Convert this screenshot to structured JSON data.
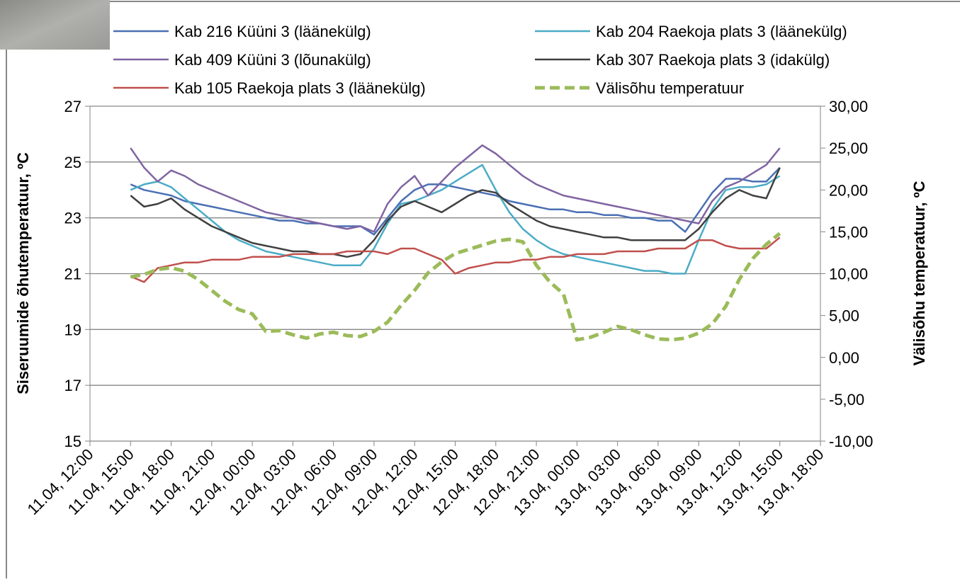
{
  "chart_data": {
    "type": "line",
    "y_label": "Siseruumide õhutemperatuur, ºC",
    "y2_label": "Välisõhu temperatuur, ºC",
    "x": [
      "11.04, 15:00",
      "11.04, 16:00",
      "11.04, 17:00",
      "11.04, 18:00",
      "11.04, 19:00",
      "11.04, 20:00",
      "11.04, 21:00",
      "11.04, 22:00",
      "11.04, 23:00",
      "12.04, 00:00",
      "12.04, 01:00",
      "12.04, 02:00",
      "12.04, 03:00",
      "12.04, 04:00",
      "12.04, 05:00",
      "12.04, 06:00",
      "12.04, 07:00",
      "12.04, 08:00",
      "12.04, 09:00",
      "12.04, 10:00",
      "12.04, 11:00",
      "12.04, 12:00",
      "12.04, 13:00",
      "12.04, 14:00",
      "12.04, 15:00",
      "12.04, 16:00",
      "12.04, 17:00",
      "12.04, 18:00",
      "12.04, 19:00",
      "12.04, 20:00",
      "12.04, 21:00",
      "12.04, 22:00",
      "12.04, 23:00",
      "13.04, 00:00",
      "13.04, 01:00",
      "13.04, 02:00",
      "13.04, 03:00",
      "13.04, 04:00",
      "13.04, 05:00",
      "13.04, 06:00",
      "13.04, 07:00",
      "13.04, 08:00",
      "13.04, 09:00",
      "13.04, 10:00",
      "13.04, 11:00",
      "13.04, 12:00",
      "13.04, 13:00",
      "13.04, 14:00",
      "13.04, 15:00"
    ],
    "xlim": [
      "11.04, 12:00",
      "13.04, 18:00"
    ],
    "xticks": [
      "11.04, 12:00",
      "11.04, 15:00",
      "11.04, 18:00",
      "11.04, 21:00",
      "12.04, 00:00",
      "12.04, 03:00",
      "12.04, 06:00",
      "12.04, 09:00",
      "12.04, 12:00",
      "12.04, 15:00",
      "12.04, 18:00",
      "12.04, 21:00",
      "13.04, 00:00",
      "13.04, 03:00",
      "13.04, 06:00",
      "13.04, 09:00",
      "13.04, 12:00",
      "13.04, 15:00",
      "13.04, 18:00"
    ],
    "ylim": [
      15,
      27
    ],
    "yticks": [
      15,
      17,
      19,
      21,
      23,
      25,
      27
    ],
    "y2lim": [
      -10,
      30
    ],
    "y2ticks": [
      {
        "value": -10,
        "label": "-10,00"
      },
      {
        "value": -5,
        "label": "-5,00"
      },
      {
        "value": 0,
        "label": "0,00"
      },
      {
        "value": 5,
        "label": "5,00"
      },
      {
        "value": 10,
        "label": "10,00"
      },
      {
        "value": 15,
        "label": "15,00"
      },
      {
        "value": 20,
        "label": "20,00"
      },
      {
        "value": 25,
        "label": "25,00"
      },
      {
        "value": 30,
        "label": "30,00"
      }
    ],
    "grid": true,
    "series": [
      {
        "name": "Kab 216 Küüni 3 (läänekülg)",
        "color": "#4a6fb3",
        "values": [
          24.2,
          24.0,
          23.9,
          23.8,
          23.6,
          23.5,
          23.4,
          23.3,
          23.2,
          23.1,
          23.0,
          22.9,
          22.9,
          22.8,
          22.8,
          22.7,
          22.7,
          22.7,
          22.4,
          23.0,
          23.6,
          24.0,
          24.2,
          24.2,
          24.1,
          24.0,
          23.9,
          23.8,
          23.6,
          23.5,
          23.4,
          23.3,
          23.3,
          23.2,
          23.2,
          23.1,
          23.1,
          23.0,
          23.0,
          22.9,
          22.9,
          22.5,
          23.2,
          23.9,
          24.4,
          24.4,
          24.3,
          24.3,
          24.8
        ]
      },
      {
        "name": "Kab 204 Raekoja plats 3 (läänekülg)",
        "color": "#4bacc6",
        "values": [
          24.0,
          24.2,
          24.3,
          24.1,
          23.7,
          23.3,
          22.9,
          22.5,
          22.2,
          22.0,
          21.8,
          21.7,
          21.6,
          21.5,
          21.4,
          21.3,
          21.3,
          21.3,
          21.9,
          22.8,
          23.5,
          23.6,
          23.8,
          24.0,
          24.3,
          24.6,
          24.9,
          24.0,
          23.2,
          22.6,
          22.2,
          21.9,
          21.7,
          21.6,
          21.5,
          21.4,
          21.3,
          21.2,
          21.1,
          21.1,
          21.0,
          21.0,
          22.2,
          23.3,
          24.0,
          24.1,
          24.1,
          24.2,
          24.5
        ]
      },
      {
        "name": "Kab 409 Küüni 3 (lõunakülg)",
        "color": "#8064a2",
        "values": [
          25.5,
          24.8,
          24.3,
          24.7,
          24.5,
          24.2,
          24.0,
          23.8,
          23.6,
          23.4,
          23.2,
          23.1,
          23.0,
          22.9,
          22.8,
          22.7,
          22.6,
          22.7,
          22.5,
          23.5,
          24.1,
          24.5,
          23.8,
          24.3,
          24.8,
          25.2,
          25.6,
          25.3,
          24.9,
          24.5,
          24.2,
          24.0,
          23.8,
          23.7,
          23.6,
          23.5,
          23.4,
          23.3,
          23.2,
          23.1,
          23.0,
          22.9,
          22.8,
          23.6,
          24.1,
          24.3,
          24.6,
          24.9,
          25.5
        ]
      },
      {
        "name": "Kab 307 Raekoja plats 3 (idakülg)",
        "color": "#404040",
        "values": [
          23.8,
          23.4,
          23.5,
          23.7,
          23.3,
          23.0,
          22.7,
          22.5,
          22.3,
          22.1,
          22.0,
          21.9,
          21.8,
          21.8,
          21.7,
          21.7,
          21.6,
          21.7,
          22.2,
          22.9,
          23.4,
          23.6,
          23.4,
          23.2,
          23.5,
          23.8,
          24.0,
          23.9,
          23.5,
          23.2,
          22.9,
          22.7,
          22.6,
          22.5,
          22.4,
          22.3,
          22.3,
          22.2,
          22.2,
          22.2,
          22.2,
          22.2,
          22.6,
          23.2,
          23.7,
          24.0,
          23.8,
          23.7,
          24.8
        ]
      },
      {
        "name": "Kab 105 Raekoja plats 3 (läänekülg)",
        "color": "#c0504d",
        "values": [
          20.9,
          20.7,
          21.2,
          21.3,
          21.4,
          21.4,
          21.5,
          21.5,
          21.5,
          21.6,
          21.6,
          21.6,
          21.7,
          21.7,
          21.7,
          21.7,
          21.8,
          21.8,
          21.8,
          21.7,
          21.9,
          21.9,
          21.7,
          21.5,
          21.0,
          21.2,
          21.3,
          21.4,
          21.4,
          21.5,
          21.5,
          21.6,
          21.6,
          21.7,
          21.7,
          21.7,
          21.8,
          21.8,
          21.8,
          21.9,
          21.9,
          21.9,
          22.2,
          22.2,
          22.0,
          21.9,
          21.9,
          21.9,
          22.3
        ]
      },
      {
        "name": "Välisõhu temperatuur",
        "color": "#9bbb59",
        "axis": "y2",
        "dashed": true,
        "values": [
          9.6,
          9.9,
          10.5,
          10.7,
          10.3,
          9.3,
          8.0,
          6.7,
          5.7,
          5.2,
          3.1,
          3.2,
          2.7,
          2.3,
          2.8,
          3.0,
          2.6,
          2.5,
          3.1,
          4.2,
          6.2,
          8.0,
          10.1,
          11.4,
          12.4,
          12.9,
          13.4,
          13.9,
          14.1,
          13.8,
          11.0,
          9.0,
          7.6,
          2.1,
          2.4,
          3.0,
          3.7,
          3.3,
          2.7,
          2.2,
          2.1,
          2.3,
          2.9,
          4.0,
          6.1,
          9.3,
          11.8,
          13.5,
          14.8
        ]
      }
    ]
  }
}
